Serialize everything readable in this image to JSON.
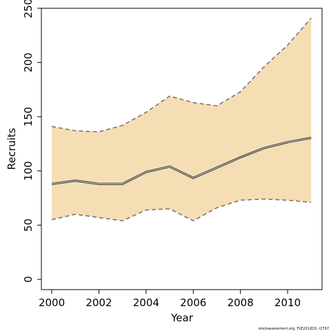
{
  "chart_data": {
    "type": "line",
    "x_label": "Year",
    "y_label": "Recruits",
    "footer": "stockassessment.org, FLE2012D3, r2767",
    "x": [
      2000,
      2001,
      2002,
      2003,
      2004,
      2005,
      2006,
      2007,
      2008,
      2009,
      2010,
      2011
    ],
    "values": [
      88,
      91,
      88,
      88,
      99,
      104,
      93.5,
      103,
      112.5,
      121,
      126.5,
      130.5
    ],
    "upper": [
      141,
      137,
      136,
      142,
      154,
      169,
      163,
      160,
      173,
      196,
      216,
      241
    ],
    "lower": [
      55,
      60,
      57,
      54,
      64,
      65,
      54,
      66,
      73,
      74,
      73,
      71
    ],
    "color": "#333333",
    "band_line_color": "#7a6a6a",
    "fill_color": "#f5deb3",
    "xlim": [
      1999.56,
      2011.46
    ],
    "ylim": [
      -9.5,
      250
    ],
    "xticks": [
      2000,
      2002,
      2004,
      2006,
      2008,
      2010
    ],
    "yticks": [
      0,
      50,
      100,
      150,
      200,
      250
    ]
  }
}
